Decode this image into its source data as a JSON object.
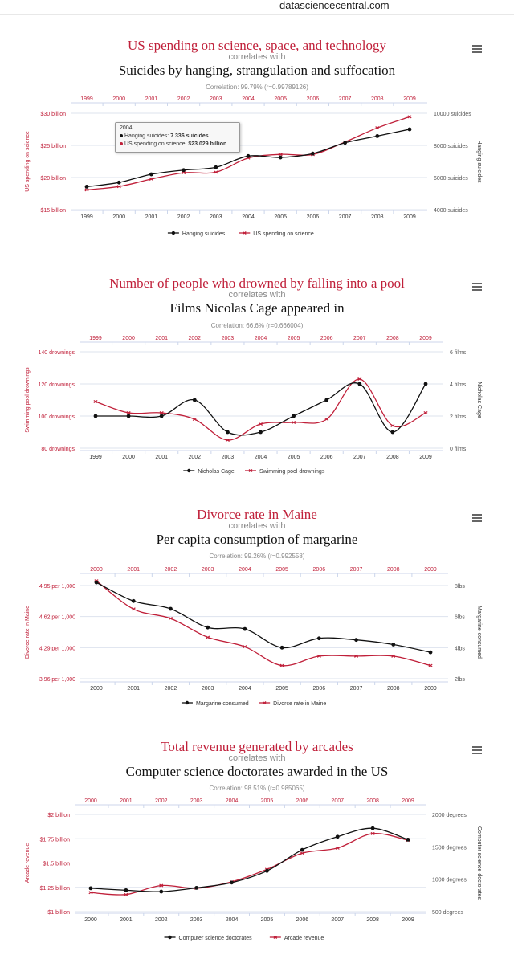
{
  "site": "datasciencecentral.com",
  "colors": {
    "red": "#c0203a",
    "black": "#111111",
    "grid": "#dde3ee"
  },
  "panels": [
    {
      "title1": "US spending on science, space, and technology",
      "title2": "correlates with",
      "title3": "Suicides by hanging, strangulation and suffocation",
      "corr": "Correlation: 99.79% (r=0.99789126)",
      "menu_icon": "hamburger-menu-icon",
      "tooltip": {
        "year": "2004",
        "line1_label": "Hanging suicides: ",
        "line1_value": "7 336 suicides",
        "line2_label": "US spending on science: ",
        "line2_value": "$23.029 billion"
      }
    },
    {
      "title1": "Number of people who drowned by falling into a pool",
      "title2": "correlates with",
      "title3": "Films Nicolas Cage appeared in",
      "corr": "Correlation: 66.6% (r=0.666004)",
      "menu_icon": "hamburger-menu-icon"
    },
    {
      "title1": "Divorce rate in Maine",
      "title2": "correlates with",
      "title3": "Per capita consumption of margarine",
      "corr": "Correlation: 99.26% (r=0.992558)",
      "menu_icon": "hamburger-menu-icon"
    },
    {
      "title1": "Total revenue generated by arcades",
      "title2": "correlates with",
      "title3": "Computer science doctorates awarded in the US",
      "corr": "Correlation: 98.51% (r=0.985065)",
      "menu_icon": "hamburger-menu-icon"
    }
  ],
  "chart_data": [
    {
      "type": "line",
      "x": [
        "1999",
        "2000",
        "2001",
        "2002",
        "2003",
        "2004",
        "2005",
        "2006",
        "2007",
        "2008",
        "2009"
      ],
      "left_axis": {
        "label": "US spending on science",
        "ticks": [
          "$15 billion",
          "$20 billion",
          "$25 billion",
          "$30 billion"
        ],
        "range": [
          15,
          30
        ]
      },
      "right_axis": {
        "label": "Hanging suicides",
        "ticks": [
          "4000 suicides",
          "6000 suicides",
          "8000 suicides",
          "10000 suicides"
        ],
        "range": [
          4000,
          10000
        ]
      },
      "series": [
        {
          "name": "Hanging suicides",
          "axis": "right",
          "color": "#111111",
          "values": [
            5427,
            5688,
            6198,
            6462,
            6635,
            7336,
            7248,
            7491,
            8161,
            8578,
            9000
          ]
        },
        {
          "name": "US spending on science",
          "axis": "left",
          "color": "#c0203a",
          "values": [
            18.079,
            18.594,
            19.753,
            20.734,
            20.831,
            23.029,
            23.597,
            23.584,
            25.525,
            27.731,
            29.449
          ]
        }
      ],
      "legend": "bottom-center"
    },
    {
      "type": "line",
      "x": [
        "1999",
        "2000",
        "2001",
        "2002",
        "2003",
        "2004",
        "2005",
        "2006",
        "2007",
        "2008",
        "2009"
      ],
      "left_axis": {
        "label": "Swimming pool drownings",
        "ticks": [
          "80 drownings",
          "100 drownings",
          "120 drownings",
          "140 drownings"
        ],
        "range": [
          80,
          140
        ]
      },
      "right_axis": {
        "label": "Nicholas Cage",
        "ticks": [
          "0 films",
          "2 films",
          "4 films",
          "6 films"
        ],
        "range": [
          0,
          6
        ]
      },
      "series": [
        {
          "name": "Nicholas Cage",
          "axis": "right",
          "color": "#111111",
          "values": [
            2,
            2,
            2,
            3,
            1,
            1,
            2,
            3,
            4,
            1,
            4
          ]
        },
        {
          "name": "Swimming pool drownings",
          "axis": "left",
          "color": "#c0203a",
          "values": [
            109,
            102,
            102,
            98,
            85,
            95,
            96,
            98,
            123,
            94,
            102
          ]
        }
      ],
      "legend": "bottom-center"
    },
    {
      "type": "line",
      "x": [
        "2000",
        "2001",
        "2002",
        "2003",
        "2004",
        "2005",
        "2006",
        "2007",
        "2008",
        "2009"
      ],
      "left_axis": {
        "label": "Divorce rate in Maine",
        "ticks": [
          "3.96 per 1,000",
          "4.29 per 1,000",
          "4.62 per 1,000",
          "4.95 per 1,000"
        ],
        "range": [
          3.96,
          4.95
        ]
      },
      "right_axis": {
        "label": "Margarine consumed",
        "ticks": [
          "2lbs",
          "4lbs",
          "6lbs",
          "8lbs"
        ],
        "range": [
          2,
          8
        ]
      },
      "series": [
        {
          "name": "Margarine consumed",
          "axis": "right",
          "color": "#111111",
          "values": [
            8.2,
            7,
            6.5,
            5.3,
            5.2,
            4,
            4.6,
            4.5,
            4.2,
            3.7
          ]
        },
        {
          "name": "Divorce rate in Maine",
          "axis": "left",
          "color": "#c0203a",
          "values": [
            5,
            4.7,
            4.6,
            4.4,
            4.3,
            4.1,
            4.2,
            4.2,
            4.2,
            4.1
          ]
        }
      ],
      "legend": "bottom-center"
    },
    {
      "type": "line",
      "x": [
        "2000",
        "2001",
        "2002",
        "2003",
        "2004",
        "2005",
        "2006",
        "2007",
        "2008",
        "2009"
      ],
      "left_axis": {
        "label": "Arcade revenue",
        "ticks": [
          "$1 billion",
          "$1.25 billion",
          "$1.5 billion",
          "$1.75 billion",
          "$2 billion"
        ],
        "range": [
          1,
          2
        ]
      },
      "right_axis": {
        "label": "Computer science doctorates",
        "ticks": [
          "500 degrees",
          "1000 degrees",
          "1500 degrees",
          "2000 degrees"
        ],
        "range": [
          500,
          2000
        ]
      },
      "series": [
        {
          "name": "Computer science doctorates",
          "axis": "right",
          "color": "#111111",
          "values": [
            861,
            830,
            809,
            867,
            948,
            1129,
            1453,
            1656,
            1787,
            1611
          ]
        },
        {
          "name": "Arcade revenue",
          "axis": "left",
          "color": "#c0203a",
          "values": [
            1.196,
            1.176,
            1.269,
            1.24,
            1.307,
            1.435,
            1.601,
            1.654,
            1.803,
            1.734
          ]
        }
      ],
      "legend": "bottom-center"
    }
  ]
}
